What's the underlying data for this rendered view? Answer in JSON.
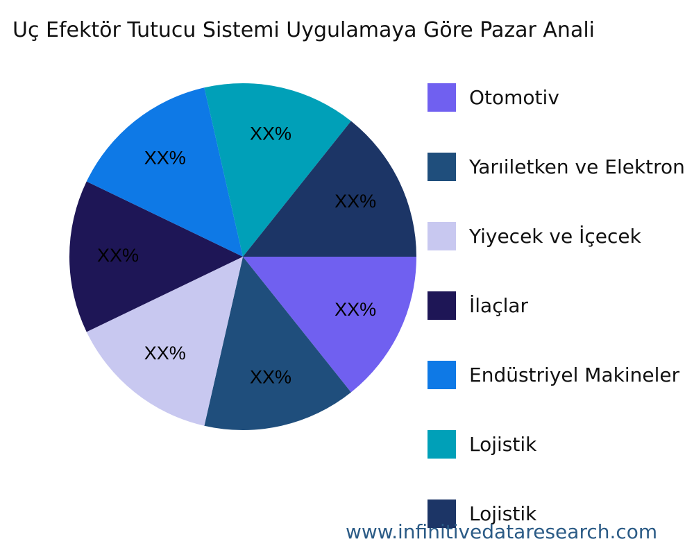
{
  "chart_data": {
    "type": "pie",
    "title": "Uç Efektör Tutucu Sistemi Uygulamaya Göre Pazar Anali",
    "slices": [
      {
        "name": "Otomotiv",
        "value": 14.29,
        "label": "XX%",
        "color": "#7060f0"
      },
      {
        "name": "Yarıiletken ve Elektron",
        "value": 14.29,
        "label": "XX%",
        "color": "#1f4e7c"
      },
      {
        "name": "Yiyecek ve İçecek",
        "value": 14.29,
        "label": "XX%",
        "color": "#c8c8f0"
      },
      {
        "name": "İlaçlar",
        "value": 14.29,
        "label": "XX%",
        "color": "#1e1656"
      },
      {
        "name": "Endüstriyel Makineler",
        "value": 14.29,
        "label": "XX%",
        "color": "#0e79e6"
      },
      {
        "name": "Lojistik",
        "value": 14.29,
        "label": "XX%",
        "color": "#00a0b8"
      },
      {
        "name": "Lojistik",
        "value": 14.29,
        "label": "XX%",
        "color": "#1c3566"
      }
    ],
    "start_angle": "3 o'clock",
    "direction": "clockwise",
    "legend_placement": "right"
  },
  "watermark": "www.infinitivedataresearch.com"
}
